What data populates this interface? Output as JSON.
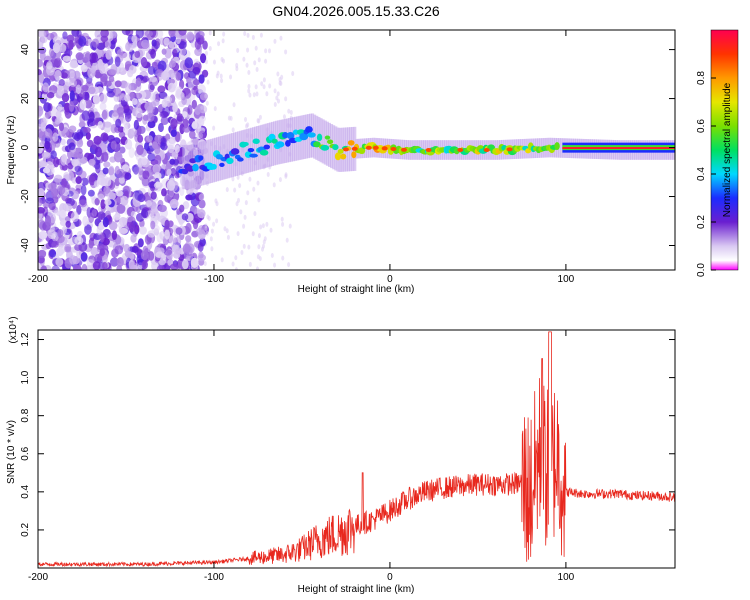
{
  "title": "GN04.2026.005.15.33.C26",
  "colorbar": {
    "label": "Normalized spectral amplitude",
    "ticks": [
      "0.0",
      "0.2",
      "0.4",
      "0.6",
      "0.8"
    ]
  },
  "chart_data": [
    {
      "type": "heatmap",
      "xlabel": "Height of straight line (km)",
      "ylabel": "Frequency (Hz)",
      "xlim": [
        -200,
        162
      ],
      "ylim": [
        -50,
        48
      ],
      "xticks": [
        -200,
        -100,
        0,
        100
      ],
      "yticks": [
        -40,
        -20,
        0,
        20,
        40
      ],
      "zlim": [
        0,
        1
      ],
      "description_points": [
        {
          "x": -115,
          "f": -8,
          "amp": 0.35
        },
        {
          "x": -90,
          "f": -3,
          "amp": 0.4
        },
        {
          "x": -65,
          "f": 2,
          "amp": 0.45
        },
        {
          "x": -45,
          "f": 5,
          "amp": 0.5
        },
        {
          "x": -30,
          "f": -1,
          "amp": 0.7
        },
        {
          "x": -10,
          "f": 0,
          "amp": 0.85
        },
        {
          "x": 10,
          "f": -1,
          "amp": 0.6
        },
        {
          "x": 60,
          "f": -1,
          "amp": 0.7
        },
        {
          "x": 90,
          "f": 0,
          "amp": 0.65
        },
        {
          "x": 130,
          "f": -1,
          "amp": 0.95
        }
      ]
    },
    {
      "type": "line",
      "xlabel": "Height of straight line (km)",
      "ylabel": "SNR (10 * v/v)",
      "yscale_label": "(x10⁴)",
      "xlim": [
        -200,
        162
      ],
      "ylim": [
        0,
        1.25
      ],
      "xticks": [
        -200,
        -100,
        0,
        100
      ],
      "yticks": [
        0.2,
        0.4,
        0.6,
        0.8,
        1.0,
        1.2
      ],
      "series": [
        {
          "color": "#e8281e",
          "x": [
            -200,
            -180,
            -160,
            -140,
            -120,
            -100,
            -80,
            -60,
            -50,
            -40,
            -30,
            -20,
            -10,
            0,
            10,
            20,
            30,
            40,
            50,
            60,
            70,
            75,
            80,
            85,
            90,
            95,
            100,
            110,
            120,
            130,
            140,
            150,
            162
          ],
          "y": [
            0.02,
            0.02,
            0.02,
            0.02,
            0.025,
            0.03,
            0.05,
            0.07,
            0.1,
            0.15,
            0.18,
            0.22,
            0.25,
            0.3,
            0.36,
            0.4,
            0.42,
            0.43,
            0.44,
            0.44,
            0.44,
            0.45,
            0.4,
            0.6,
            0.5,
            0.6,
            0.4,
            0.39,
            0.39,
            0.39,
            0.38,
            0.38,
            0.37
          ]
        }
      ]
    }
  ]
}
